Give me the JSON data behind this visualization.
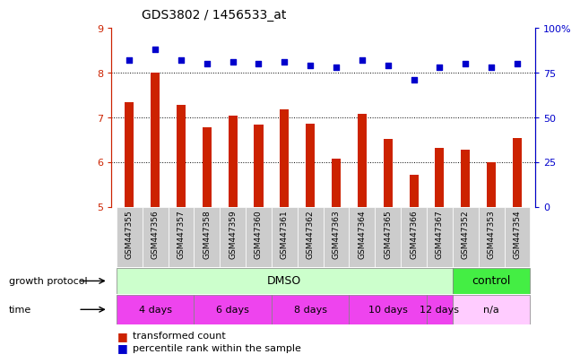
{
  "title": "GDS3802 / 1456533_at",
  "samples": [
    "GSM447355",
    "GSM447356",
    "GSM447357",
    "GSM447358",
    "GSM447359",
    "GSM447360",
    "GSM447361",
    "GSM447362",
    "GSM447363",
    "GSM447364",
    "GSM447365",
    "GSM447366",
    "GSM447367",
    "GSM447352",
    "GSM447353",
    "GSM447354"
  ],
  "transformed_count": [
    7.35,
    8.0,
    7.28,
    6.78,
    7.05,
    6.85,
    7.18,
    6.87,
    6.08,
    7.08,
    6.52,
    5.72,
    6.32,
    6.28,
    6.0,
    6.55
  ],
  "percentile_rank": [
    82,
    88,
    82,
    80,
    81,
    80,
    81,
    79,
    78,
    82,
    79,
    71,
    78,
    80,
    78,
    80
  ],
  "ylim_left": [
    5,
    9
  ],
  "ylim_right": [
    0,
    100
  ],
  "yticks_left": [
    5,
    6,
    7,
    8,
    9
  ],
  "yticks_right": [
    0,
    25,
    50,
    75,
    100
  ],
  "bar_color": "#cc2200",
  "dot_color": "#0000cc",
  "bg_color": "#ffffff",
  "tick_label_bg": "#cccccc",
  "growth_protocol_label": "growth protocol",
  "time_label": "time",
  "dmso_color": "#ccffcc",
  "control_color": "#44ee44",
  "time_color_dark": "#ee44ee",
  "time_color_light": "#ffccff",
  "na_color": "#ffccff",
  "legend_red": "transformed count",
  "legend_blue": "percentile rank within the sample",
  "right_axis_color": "#0000cc",
  "left_axis_color": "#cc2200",
  "time_boundaries": [
    [
      -0.5,
      2.5,
      "4 days",
      "#ee44ee"
    ],
    [
      2.5,
      5.5,
      "6 days",
      "#ee44ee"
    ],
    [
      5.5,
      8.5,
      "8 days",
      "#ee44ee"
    ],
    [
      8.5,
      11.5,
      "10 days",
      "#ee44ee"
    ],
    [
      11.5,
      12.5,
      "12 days",
      "#ee44ee"
    ],
    [
      12.5,
      15.5,
      "n/a",
      "#ffccff"
    ]
  ]
}
